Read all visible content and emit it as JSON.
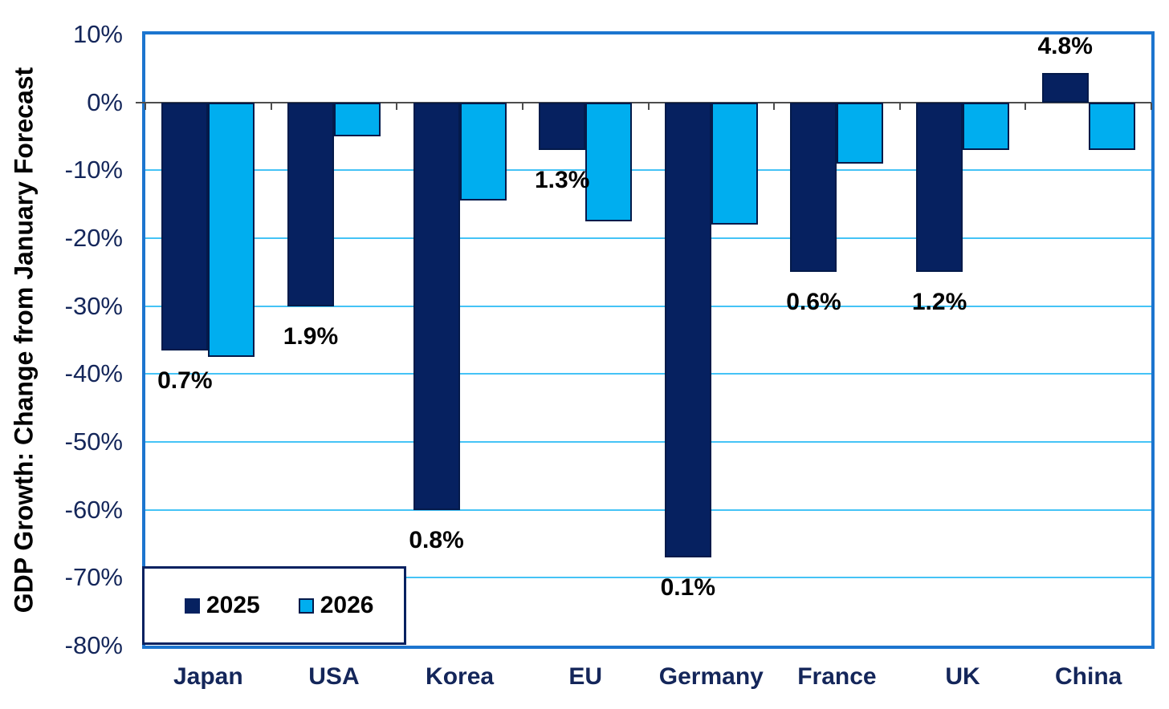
{
  "chart_data": {
    "type": "bar",
    "title": "",
    "xlabel": "",
    "ylabel": "GDP Growth: Change from January Forecast",
    "categories": [
      "Japan",
      "USA",
      "Korea",
      "EU",
      "Germany",
      "France",
      "UK",
      "China"
    ],
    "series": [
      {
        "name": "2025",
        "values": [
          -36.5,
          -30,
          -60,
          -7,
          -67,
          -25,
          -25,
          4.3
        ]
      },
      {
        "name": "2026",
        "values": [
          -37.5,
          -5,
          -14.5,
          -17.5,
          -18,
          -9,
          -7,
          -7
        ]
      }
    ],
    "bar_labels": [
      "0.7%",
      "1.9%",
      "0.8%",
      "1.3%",
      "0.1%",
      "0.6%",
      "1.2%",
      "4.8%"
    ],
    "ylim": [
      -80,
      10
    ],
    "y_ticks": [
      {
        "value": 10,
        "label": "10%"
      },
      {
        "value": 0,
        "label": "0%"
      },
      {
        "value": -10,
        "label": "-10%"
      },
      {
        "value": -20,
        "label": "-20%"
      },
      {
        "value": -30,
        "label": "-30%"
      },
      {
        "value": -40,
        "label": "-40%"
      },
      {
        "value": -50,
        "label": "-50%"
      },
      {
        "value": -60,
        "label": "-60%"
      },
      {
        "value": -70,
        "label": "-70%"
      },
      {
        "value": -80,
        "label": "-80%"
      }
    ],
    "grid": "horizontal gridlines every 10%, 0% axis line darker",
    "legend_position": "inside bottom-left"
  },
  "legend": {
    "items": [
      {
        "label": "2025"
      },
      {
        "label": "2026"
      }
    ]
  },
  "colors": {
    "series_2025": "#062160",
    "series_2026": "#00AEEF",
    "bar_outline": "#041A4A",
    "plot_border": "#1C75CF",
    "gridline": "#45C3F6",
    "zero_line": "#4D4D4D",
    "axis_label_text": "#14265A",
    "data_label_text": "#000000",
    "background": "#FFFFFF"
  }
}
